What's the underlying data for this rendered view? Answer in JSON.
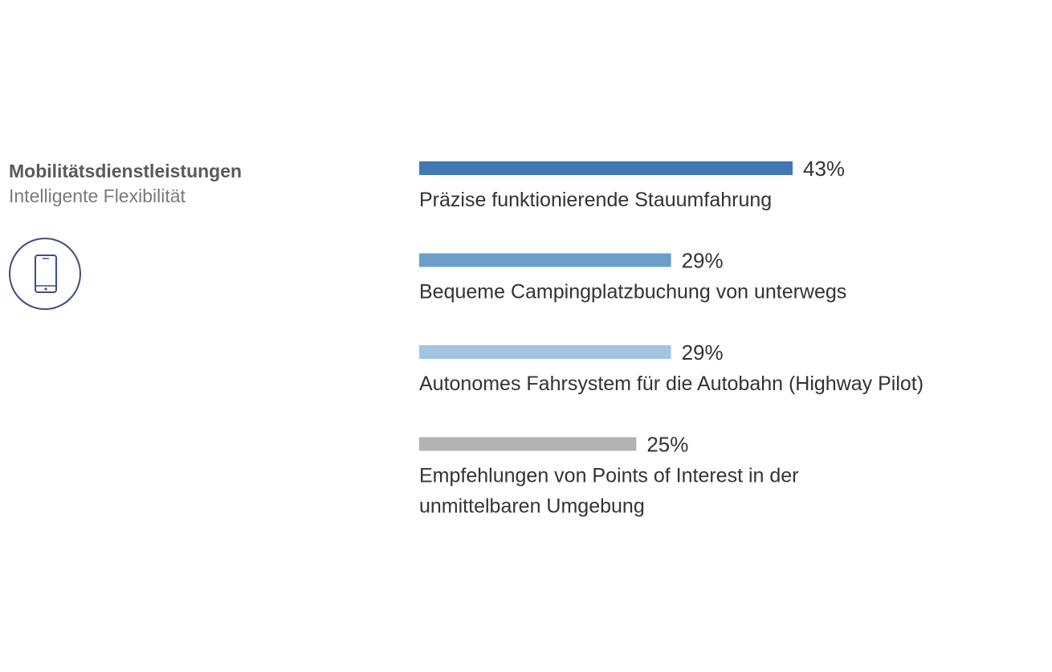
{
  "panel": {
    "title": "Mobilitätsdienstleistungen",
    "subtitle": "Intelligente Flexibilität",
    "icon": "smartphone-icon",
    "icon_color": "#3e4f7f"
  },
  "chart_data": {
    "type": "bar",
    "orientation": "horizontal",
    "value_unit": "%",
    "xlim": [
      0,
      43
    ],
    "grid": false,
    "legend": "none",
    "items": [
      {
        "label": [
          "Präzise funktionierende Stauumfahrung"
        ],
        "value": 43,
        "value_label": "43%",
        "color": "#3f78b4"
      },
      {
        "label": [
          "Bequeme Campingplatzbuchung von unterwegs"
        ],
        "value": 29,
        "value_label": "29%",
        "color": "#6b9fcb"
      },
      {
        "label": [
          "Autonomes Fahrsystem für die Autobahn (Highway Pilot)"
        ],
        "value": 29,
        "value_label": "29%",
        "color": "#a2c5e2"
      },
      {
        "label": [
          "Empfehlungen von Points of Interest in der",
          "unmittelbaren Umgebung"
        ],
        "value": 25,
        "value_label": "25%",
        "color": "#b3b3b3"
      }
    ]
  }
}
